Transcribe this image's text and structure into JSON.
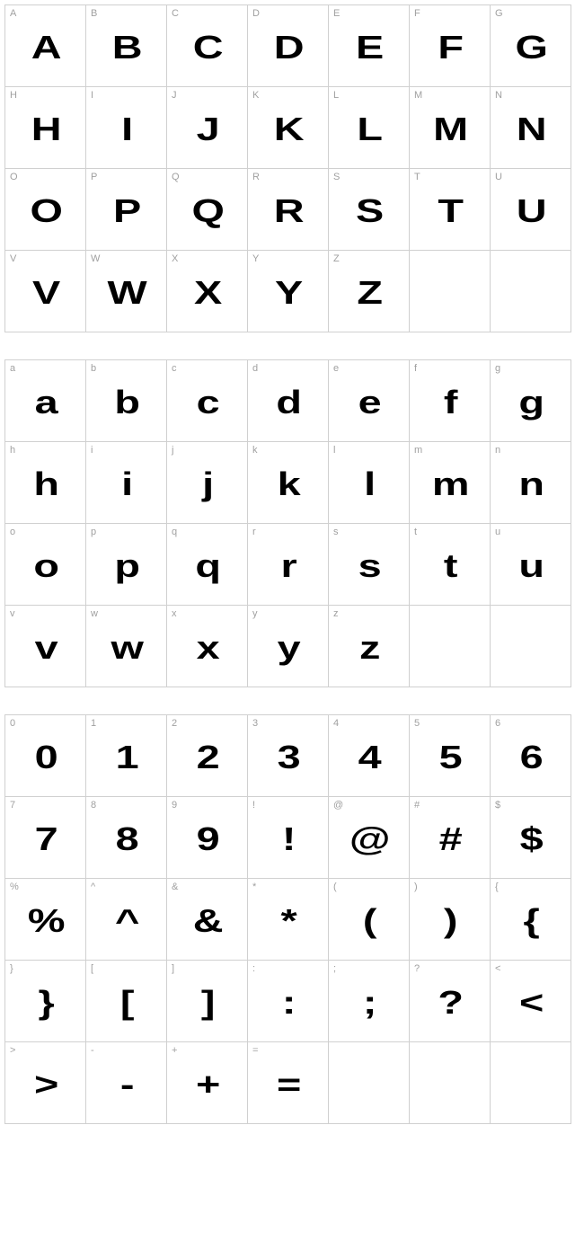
{
  "layout": {
    "columns": 7,
    "cell_size": 90,
    "border_color": "#d0d0d0",
    "label_color": "#a0a0a0",
    "label_fontsize": 11,
    "glyph_color": "#000000",
    "glyph_fontsize": 36,
    "background_color": "#ffffff",
    "section_gap": 30
  },
  "sections": [
    {
      "name": "uppercase",
      "cells": [
        {
          "label": "A",
          "glyph": "A"
        },
        {
          "label": "B",
          "glyph": "B"
        },
        {
          "label": "C",
          "glyph": "C"
        },
        {
          "label": "D",
          "glyph": "D"
        },
        {
          "label": "E",
          "glyph": "E"
        },
        {
          "label": "F",
          "glyph": "F"
        },
        {
          "label": "G",
          "glyph": "G"
        },
        {
          "label": "H",
          "glyph": "H"
        },
        {
          "label": "I",
          "glyph": "I"
        },
        {
          "label": "J",
          "glyph": "J"
        },
        {
          "label": "K",
          "glyph": "K"
        },
        {
          "label": "L",
          "glyph": "L"
        },
        {
          "label": "M",
          "glyph": "M"
        },
        {
          "label": "N",
          "glyph": "N"
        },
        {
          "label": "O",
          "glyph": "O"
        },
        {
          "label": "P",
          "glyph": "P"
        },
        {
          "label": "Q",
          "glyph": "Q"
        },
        {
          "label": "R",
          "glyph": "R"
        },
        {
          "label": "S",
          "glyph": "S"
        },
        {
          "label": "T",
          "glyph": "T"
        },
        {
          "label": "U",
          "glyph": "U"
        },
        {
          "label": "V",
          "glyph": "V"
        },
        {
          "label": "W",
          "glyph": "W"
        },
        {
          "label": "X",
          "glyph": "X"
        },
        {
          "label": "Y",
          "glyph": "Y"
        },
        {
          "label": "Z",
          "glyph": "Z"
        },
        {
          "label": "",
          "glyph": ""
        },
        {
          "label": "",
          "glyph": ""
        }
      ]
    },
    {
      "name": "lowercase",
      "cells": [
        {
          "label": "a",
          "glyph": "a"
        },
        {
          "label": "b",
          "glyph": "b"
        },
        {
          "label": "c",
          "glyph": "c"
        },
        {
          "label": "d",
          "glyph": "d"
        },
        {
          "label": "e",
          "glyph": "e"
        },
        {
          "label": "f",
          "glyph": "f"
        },
        {
          "label": "g",
          "glyph": "g"
        },
        {
          "label": "h",
          "glyph": "h"
        },
        {
          "label": "i",
          "glyph": "i"
        },
        {
          "label": "j",
          "glyph": "j"
        },
        {
          "label": "k",
          "glyph": "k"
        },
        {
          "label": "l",
          "glyph": "l"
        },
        {
          "label": "m",
          "glyph": "m"
        },
        {
          "label": "n",
          "glyph": "n"
        },
        {
          "label": "o",
          "glyph": "o"
        },
        {
          "label": "p",
          "glyph": "p"
        },
        {
          "label": "q",
          "glyph": "q"
        },
        {
          "label": "r",
          "glyph": "r"
        },
        {
          "label": "s",
          "glyph": "s"
        },
        {
          "label": "t",
          "glyph": "t"
        },
        {
          "label": "u",
          "glyph": "u"
        },
        {
          "label": "v",
          "glyph": "v"
        },
        {
          "label": "w",
          "glyph": "w"
        },
        {
          "label": "x",
          "glyph": "x"
        },
        {
          "label": "y",
          "glyph": "y"
        },
        {
          "label": "z",
          "glyph": "z"
        },
        {
          "label": "",
          "glyph": ""
        },
        {
          "label": "",
          "glyph": ""
        }
      ]
    },
    {
      "name": "symbols",
      "cells": [
        {
          "label": "0",
          "glyph": "0"
        },
        {
          "label": "1",
          "glyph": "1"
        },
        {
          "label": "2",
          "glyph": "2"
        },
        {
          "label": "3",
          "glyph": "3"
        },
        {
          "label": "4",
          "glyph": "4"
        },
        {
          "label": "5",
          "glyph": "5"
        },
        {
          "label": "6",
          "glyph": "6"
        },
        {
          "label": "7",
          "glyph": "7"
        },
        {
          "label": "8",
          "glyph": "8"
        },
        {
          "label": "9",
          "glyph": "9"
        },
        {
          "label": "!",
          "glyph": "!"
        },
        {
          "label": "@",
          "glyph": "@"
        },
        {
          "label": "#",
          "glyph": "#"
        },
        {
          "label": "$",
          "glyph": "$"
        },
        {
          "label": "%",
          "glyph": "%"
        },
        {
          "label": "^",
          "glyph": "^"
        },
        {
          "label": "&",
          "glyph": "&"
        },
        {
          "label": "*",
          "glyph": "*"
        },
        {
          "label": "(",
          "glyph": "("
        },
        {
          "label": ")",
          "glyph": ")"
        },
        {
          "label": "{",
          "glyph": "{"
        },
        {
          "label": "}",
          "glyph": "}"
        },
        {
          "label": "[",
          "glyph": "["
        },
        {
          "label": "]",
          "glyph": "]"
        },
        {
          "label": ":",
          "glyph": ":"
        },
        {
          "label": ";",
          "glyph": ";"
        },
        {
          "label": "?",
          "glyph": "?"
        },
        {
          "label": "<",
          "glyph": "<"
        },
        {
          "label": ">",
          "glyph": ">"
        },
        {
          "label": "-",
          "glyph": "-"
        },
        {
          "label": "+",
          "glyph": "+"
        },
        {
          "label": "=",
          "glyph": "="
        },
        {
          "label": "",
          "glyph": ""
        },
        {
          "label": "",
          "glyph": ""
        },
        {
          "label": "",
          "glyph": ""
        }
      ]
    }
  ]
}
